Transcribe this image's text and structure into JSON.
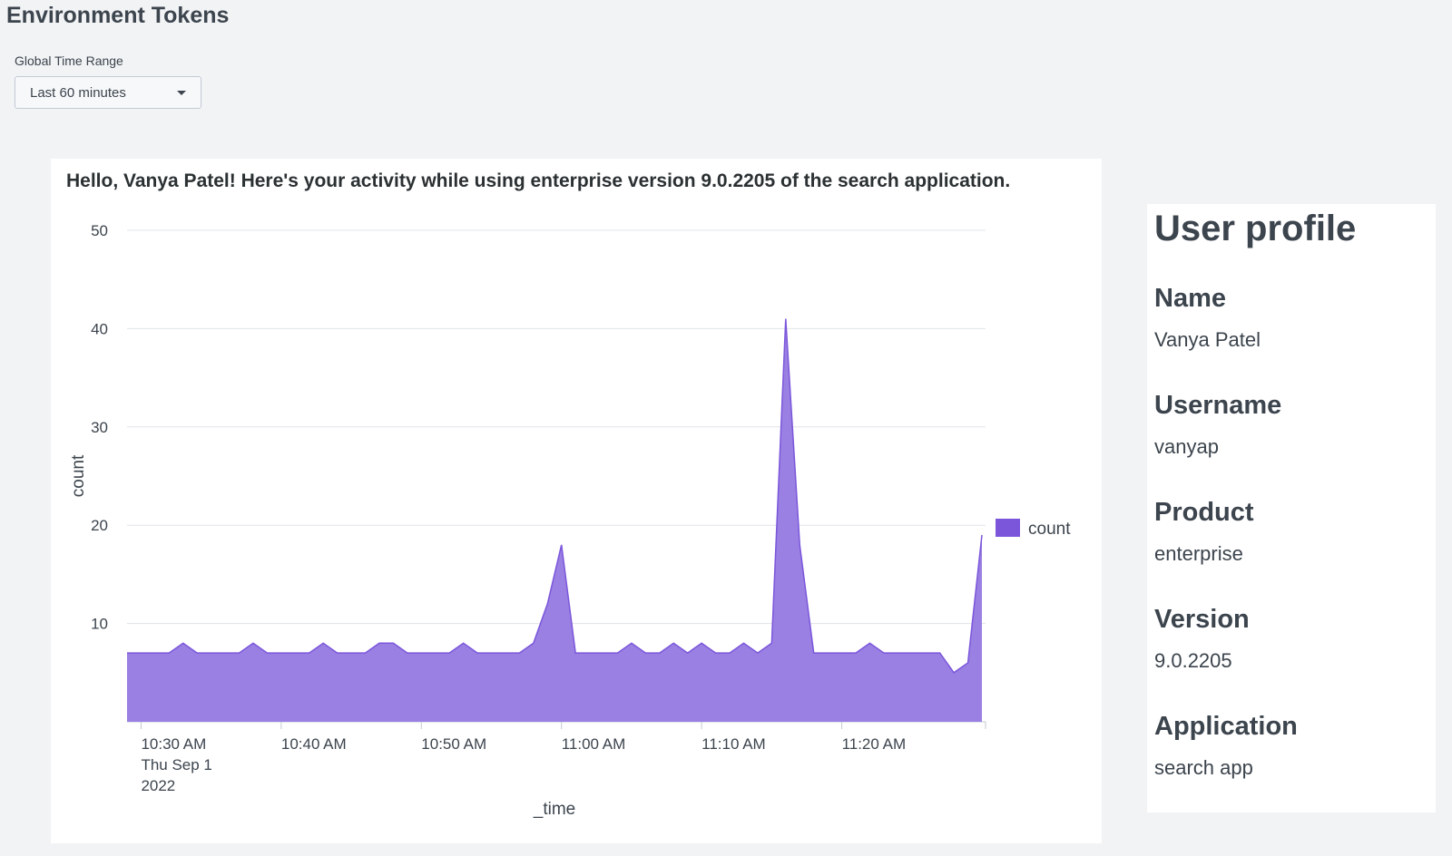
{
  "dashboard": {
    "title": "Environment Tokens"
  },
  "time_input": {
    "label": "Global Time Range",
    "value": "Last 60 minutes"
  },
  "chart_panel": {
    "title": "Hello, Vanya Patel! Here's your activity while using enterprise version 9.0.2205 of the search application."
  },
  "profile": {
    "heading": "User profile",
    "fields": [
      {
        "label": "Name",
        "value": "Vanya Patel"
      },
      {
        "label": "Username",
        "value": "vanyap"
      },
      {
        "label": "Product",
        "value": "enterprise"
      },
      {
        "label": "Version",
        "value": "9.0.2205"
      },
      {
        "label": "Application",
        "value": "search app"
      }
    ]
  },
  "colors": {
    "series": "#7b56db",
    "series_fill": "#9a80e2",
    "background": "#f2f3f5",
    "gridline": "#e1e4e8"
  },
  "chart_data": {
    "type": "area",
    "title": "Hello, Vanya Patel! Here's your activity while using enterprise version 9.0.2205 of the search application.",
    "xlabel": "_time",
    "ylabel": "count",
    "ylim": [
      0,
      50
    ],
    "y_ticks": [
      10,
      20,
      30,
      40,
      50
    ],
    "x_start": "10:29 AM",
    "x_tick_labels": [
      {
        "minute": 1,
        "lines": [
          "10:30 AM",
          "Thu Sep 1",
          "2022"
        ]
      },
      {
        "minute": 11,
        "lines": [
          "10:40 AM"
        ]
      },
      {
        "minute": 21,
        "lines": [
          "10:50 AM"
        ]
      },
      {
        "minute": 31,
        "lines": [
          "11:00 AM"
        ]
      },
      {
        "minute": 41,
        "lines": [
          "11:10 AM"
        ]
      },
      {
        "minute": 51,
        "lines": [
          "11:20 AM"
        ]
      }
    ],
    "x_span_minutes": 61,
    "grid": true,
    "legend": {
      "position": "right",
      "entries": [
        "count"
      ]
    },
    "series": [
      {
        "name": "count",
        "values": [
          7,
          7,
          7,
          7,
          8,
          7,
          7,
          7,
          7,
          8,
          7,
          7,
          7,
          7,
          8,
          7,
          7,
          7,
          8,
          8,
          7,
          7,
          7,
          7,
          8,
          7,
          7,
          7,
          7,
          8,
          12,
          18,
          7,
          7,
          7,
          7,
          8,
          7,
          7,
          8,
          7,
          8,
          7,
          7,
          8,
          7,
          8,
          41,
          18,
          7,
          7,
          7,
          7,
          8,
          7,
          7,
          7,
          7,
          7,
          5,
          6,
          19
        ]
      }
    ]
  }
}
